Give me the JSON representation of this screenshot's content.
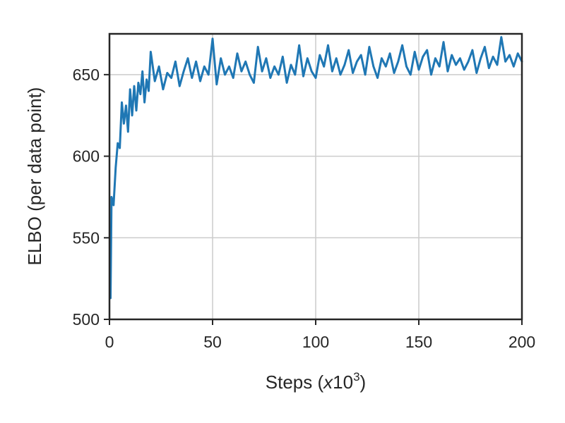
{
  "chart_data": {
    "type": "line",
    "xlabel": "Steps (",
    "xlabel_math_var": "x",
    "xlabel_math_base": "10",
    "xlabel_math_exp": "3",
    "xlabel_close": ")",
    "ylabel": "ELBO (per data point)",
    "xlim": [
      0,
      200
    ],
    "ylim": [
      500,
      675
    ],
    "xticks": [
      0,
      50,
      100,
      150,
      200
    ],
    "yticks": [
      500,
      550,
      600,
      650
    ],
    "xtick_labels": [
      "0",
      "50",
      "100",
      "150",
      "200"
    ],
    "ytick_labels": [
      "500",
      "550",
      "600",
      "650"
    ],
    "grid": true,
    "legend": "none",
    "series": [
      {
        "color": "#1f77b4",
        "x": [
          0.5,
          1,
          2,
          3,
          4,
          5,
          6,
          7,
          8,
          9,
          10,
          11,
          12,
          13,
          14,
          15,
          16,
          17,
          18,
          19,
          20,
          22,
          24,
          26,
          28,
          30,
          32,
          34,
          36,
          38,
          40,
          42,
          44,
          46,
          48,
          50,
          52,
          54,
          56,
          58,
          60,
          62,
          64,
          66,
          68,
          70,
          72,
          74,
          76,
          78,
          80,
          82,
          84,
          86,
          88,
          90,
          92,
          94,
          96,
          98,
          100,
          102,
          104,
          106,
          108,
          110,
          112,
          114,
          116,
          118,
          120,
          122,
          124,
          126,
          128,
          130,
          132,
          134,
          136,
          138,
          140,
          142,
          144,
          146,
          148,
          150,
          152,
          154,
          156,
          158,
          160,
          162,
          164,
          166,
          168,
          170,
          172,
          174,
          176,
          178,
          180,
          182,
          184,
          186,
          188,
          190,
          192,
          194,
          196,
          198,
          200
        ],
        "y": [
          513,
          575,
          570,
          593,
          608,
          605,
          633,
          620,
          631,
          615,
          641,
          625,
          643,
          628,
          645,
          638,
          652,
          633,
          647,
          640,
          664,
          646,
          655,
          641,
          651,
          648,
          658,
          643,
          652,
          660,
          648,
          658,
          646,
          655,
          650,
          672,
          644,
          660,
          650,
          655,
          648,
          663,
          652,
          658,
          650,
          645,
          667,
          652,
          660,
          648,
          655,
          650,
          661,
          645,
          656,
          650,
          668,
          649,
          660,
          652,
          648,
          662,
          655,
          668,
          652,
          660,
          650,
          656,
          665,
          651,
          658,
          662,
          650,
          667,
          655,
          648,
          660,
          655,
          663,
          651,
          658,
          668,
          655,
          650,
          664,
          653,
          661,
          665,
          650,
          660,
          655,
          670,
          652,
          662,
          656,
          660,
          653,
          658,
          665,
          651,
          660,
          667,
          654,
          661,
          656,
          673,
          658,
          662,
          655,
          663,
          658
        ]
      }
    ]
  }
}
